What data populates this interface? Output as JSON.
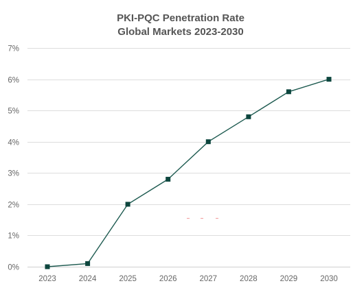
{
  "chart_data": {
    "type": "line",
    "title": "PKI-PQC Penetration Rate",
    "subtitle": "Global Markets 2023-2030",
    "xlabel": "",
    "ylabel": "",
    "x": [
      "2023",
      "2024",
      "2025",
      "2026",
      "2027",
      "2028",
      "2029",
      "2030"
    ],
    "series": [
      {
        "name": "",
        "values": [
          0.0,
          0.1,
          2.0,
          2.8,
          4.0,
          4.8,
          5.6,
          6.0
        ]
      }
    ],
    "ylim": [
      0,
      7
    ],
    "y_ticks": [
      0,
      1,
      2,
      3,
      4,
      5,
      6,
      7
    ],
    "y_tick_labels": [
      "0%",
      "1%",
      "2%",
      "3%",
      "4%",
      "5%",
      "6%",
      "7%"
    ],
    "grid": "horizontal",
    "legend": "none",
    "colors": {
      "series": "#1d5a50",
      "marker": "#0d463e",
      "grid": "#dddddd",
      "title": "#555555",
      "tick": "#666666"
    }
  }
}
